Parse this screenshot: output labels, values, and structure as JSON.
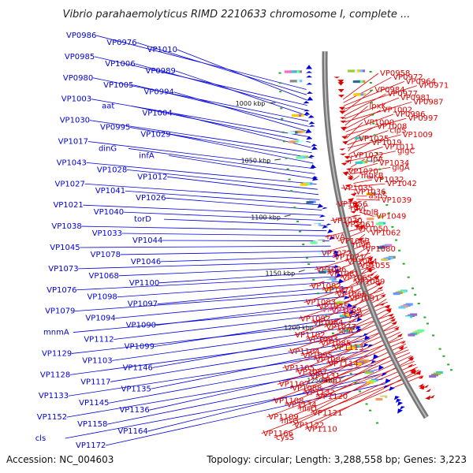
{
  "map": {
    "title": "Vibrio parahaemolyticus RIMD 2210633 chromosome I, complete ...",
    "accession_text": "Accession: NC_004603",
    "summary_text": "Topology: circular; Length: 3,288,558 bp; Genes: 3,223",
    "colors": {
      "reverse_strand": "#0000dd",
      "forward_strand": "#e00000",
      "backbone": "#777777",
      "highlight": "#cc66cc"
    },
    "ticks": [
      {
        "label": "1000 kbp",
        "pos_kbp": 1000
      },
      {
        "label": "1050 kbp",
        "pos_kbp": 1050
      },
      {
        "label": "1100 kbp",
        "pos_kbp": 1100
      },
      {
        "label": "1150 kbp",
        "pos_kbp": 1150
      },
      {
        "label": "1200 kbp",
        "pos_kbp": 1200
      },
      {
        "label": "1250 kbp",
        "pos_kbp": 1250
      }
    ],
    "left_labels": [
      "VP0986",
      "VP0976",
      "VP1010",
      "VP0985",
      "VP1006",
      "VP0989",
      "VP0980",
      "VP1005",
      "VP0994",
      "VP1003",
      "aat",
      "VP1004",
      "VP1030",
      "VP0995",
      "VP1029",
      "VP1017",
      "dinG",
      "infA",
      "VP1043",
      "VP1028",
      "VP1012",
      "VP1027",
      "VP1041",
      "VP1026",
      "VP1021",
      "VP1040",
      "torD",
      "VP1038",
      "VP1033",
      "VP1044",
      "VP1045",
      "VP1078",
      "VP1046",
      "VP1073",
      "VP1068",
      "VP1100",
      "VP1076",
      "VP1098",
      "VP1097",
      "VP1079",
      "VP1094",
      "VP1090",
      "mnmA",
      "VP1112",
      "VP1099",
      "VP1129",
      "VP1103",
      "VP1146",
      "VP1128",
      "VP1117",
      "VP1135",
      "VP1133",
      "VP1145",
      "VP1136",
      "VP1152",
      "VP1158",
      "VP1164",
      "cls",
      "VP1172"
    ],
    "right_labels": [
      "VP0958",
      "VP0972",
      "VP0964",
      "VP0971",
      "VP0984",
      "VP0977",
      "VP0981",
      "VP0987",
      "lpxK",
      "VP1002",
      "VP0996",
      "VP0997",
      "VP1000",
      "VP1008",
      "clpS",
      "VP1009",
      "VP1025",
      "VP1019",
      "VP1011",
      "glgC",
      "VP1022",
      "clpA",
      "VP1034",
      "glgA",
      "VP1020",
      "mukB",
      "VP1032",
      "VP1042",
      "VP1035",
      "VP1036",
      "aspS",
      "VP1039",
      "VP1056",
      "ruvC",
      "tolB",
      "VP1049",
      "VP1070",
      "VP1061",
      "VP1050",
      "VP1062",
      "ruvA",
      "VP1063",
      "ruvB",
      "VP1080",
      "VP1072",
      "VP1071",
      "VP1064",
      "VP1055",
      "VP1096",
      "VP1081",
      "VP1065",
      "VP1089",
      "VP1082",
      "VP1074",
      "VP1066",
      "VP1091",
      "VP1083",
      "VP1075",
      "VP1069",
      "cysB",
      "VP1092",
      "VP1084",
      "VP1077",
      "lolA",
      "VP1102",
      "VP1093",
      "VP1085",
      "VP1113",
      "VP1104",
      "VP1095",
      "VP1086",
      "VP1114",
      "VP1105",
      "VP1087",
      "VP1131",
      "bioD",
      "VP1107",
      "VP1088",
      "VP1132",
      "VP1120",
      "VP1108",
      "VP1134",
      "hisD",
      "VP1121",
      "VP1109",
      "hisG",
      "VP1122",
      "VP1110",
      "VP1166",
      "cysS"
    ],
    "highlight_label": "VP1048"
  }
}
